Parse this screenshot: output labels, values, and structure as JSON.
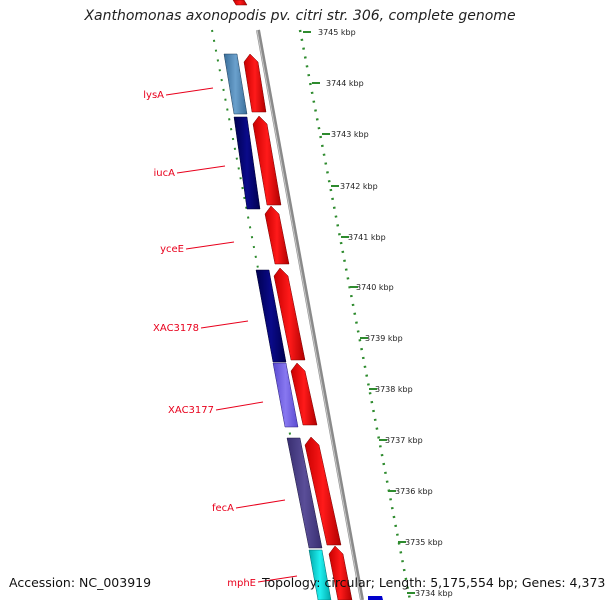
{
  "title": "Xanthomonas axonopodis pv. citri str. 306, complete genome",
  "footer": {
    "accession": "Accession: NC_003919",
    "topology": "Topology: circular; Length: 5,175,554 bp; Genes: 4,373"
  },
  "ticks": [
    "3745 kbp",
    "3744 kbp",
    "3743 kbp",
    "3742 kbp",
    "3741 kbp",
    "3740 kbp",
    "3739 kbp",
    "3738 kbp",
    "3737 kbp",
    "3736 kbp",
    "3735 kbp",
    "3734 kbp"
  ],
  "gene_labels": [
    "lysA",
    "iucA",
    "yceE",
    "XAC3178",
    "XAC3177",
    "fecA",
    "mphE"
  ],
  "colors": {
    "cds_red": "#ff0000",
    "gene_label": "#e8001c",
    "tick_green": "#2e8b2e",
    "backbone": "#8a8a8a",
    "navy": "#00006e",
    "steel_blue": "#4682b4",
    "slate_blue": "#7b68ee",
    "dark_slate": "#483d8b",
    "cyan": "#00ced1"
  }
}
